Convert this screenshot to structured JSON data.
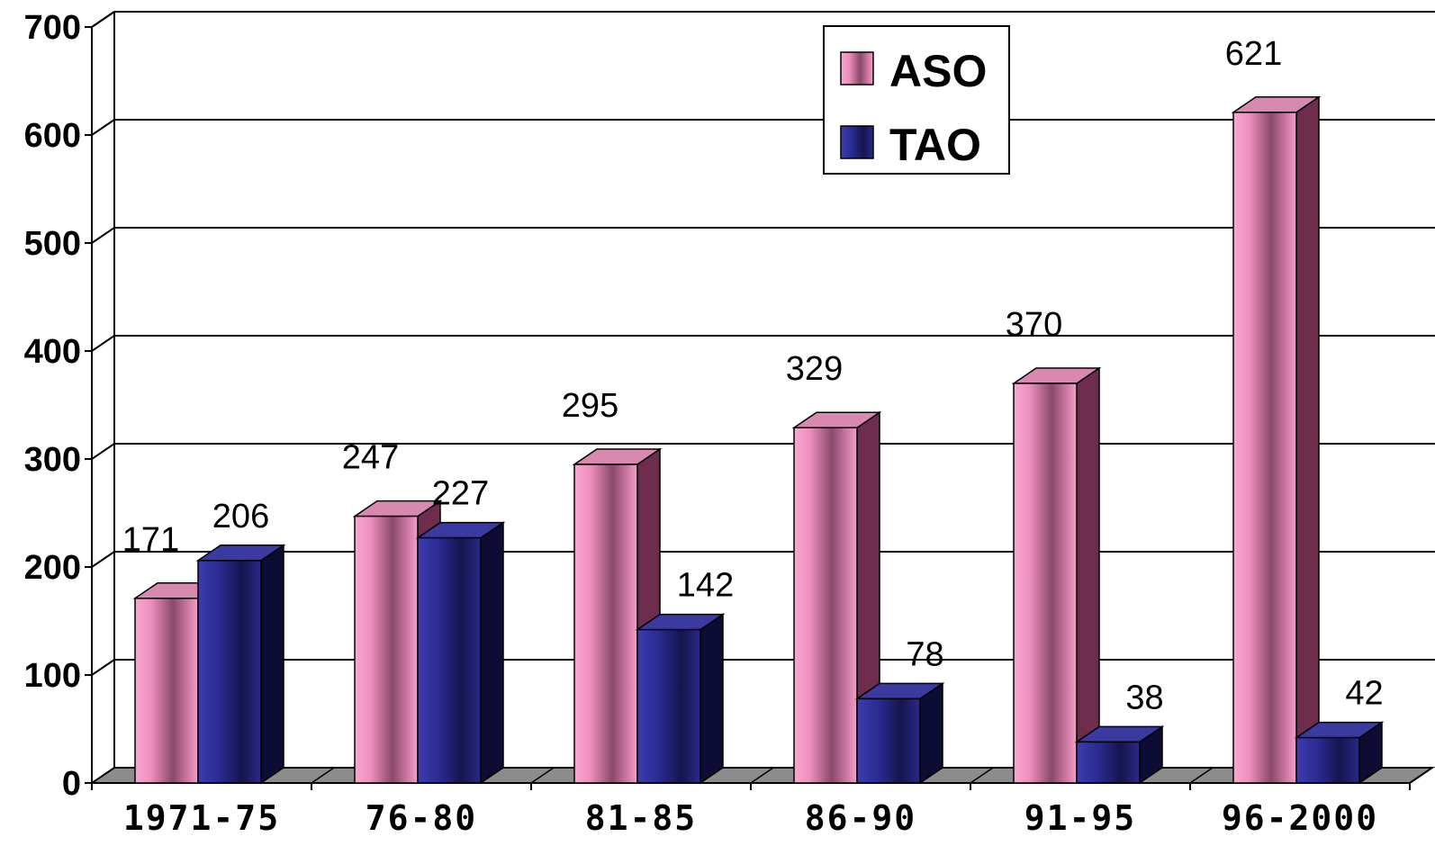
{
  "chart_data": {
    "type": "bar",
    "title": "",
    "xlabel": "",
    "ylabel": "",
    "ylim": [
      0,
      700
    ],
    "yticks": [
      0,
      100,
      200,
      300,
      400,
      500,
      600,
      700
    ],
    "grid": true,
    "legend_position": "top-right",
    "categories": [
      "1971-75",
      "76-80",
      "81-85",
      "86-90",
      "91-95",
      "96-2000"
    ],
    "series": [
      {
        "name": "ASO",
        "color": "#e87fb0",
        "values": [
          171,
          247,
          295,
          329,
          370,
          621
        ]
      },
      {
        "name": "TAO",
        "color": "#24248a",
        "values": [
          206,
          227,
          142,
          78,
          38,
          42
        ]
      }
    ]
  }
}
